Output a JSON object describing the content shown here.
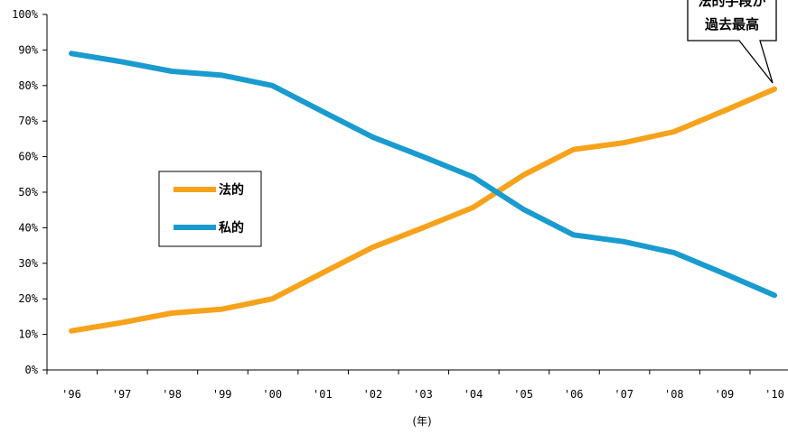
{
  "chart_data": {
    "type": "line",
    "x": [
      "'96",
      "'97",
      "'98",
      "'99",
      "'00",
      "'01",
      "'02",
      "'03",
      "'04",
      "'05",
      "'06",
      "'07",
      "'08",
      "'09",
      "'10"
    ],
    "xlabel": "(年)",
    "ylabel": "",
    "ylim": [
      0,
      100
    ],
    "yticks": [
      "0%",
      "10%",
      "20%",
      "30%",
      "40%",
      "50%",
      "60%",
      "70%",
      "80%",
      "90%",
      "100%"
    ],
    "series": [
      {
        "name": "法的",
        "color": "#f7a21b",
        "values": [
          11,
          13.3,
          16,
          17.1,
          20,
          27.3,
          34.5,
          40,
          45.7,
          54.8,
          62,
          63.9,
          67,
          72.9,
          79
        ]
      },
      {
        "name": "私的",
        "color": "#1a9bcf",
        "values": [
          89,
          86.7,
          84,
          82.9,
          80,
          72.7,
          65.5,
          60,
          54.3,
          45.2,
          38,
          36.1,
          33,
          27.1,
          21
        ]
      }
    ],
    "legend": {
      "position": "center-left",
      "items": [
        "法的",
        "私的"
      ]
    },
    "annotations": [
      {
        "lines": [
          "法的手段が",
          "過去最高"
        ],
        "points_to": "'10"
      }
    ],
    "grid": false
  }
}
